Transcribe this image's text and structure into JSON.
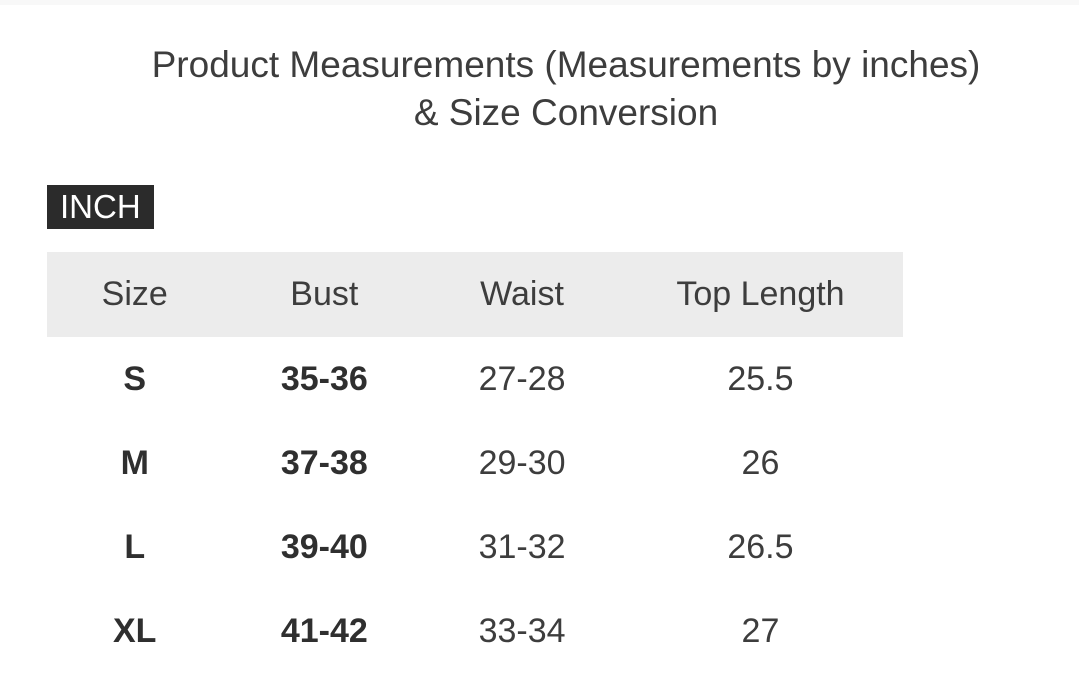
{
  "page": {
    "title": "Product Measurements (Measurements by inches) & Size Conversion"
  },
  "unit_badge": {
    "label": "INCH"
  },
  "table": {
    "headers": [
      "Size",
      "Bust",
      "Waist",
      "Top Length"
    ],
    "rows": [
      {
        "size": "S",
        "bust": "35-36",
        "waist": "27-28",
        "top_length": "25.5"
      },
      {
        "size": "M",
        "bust": "37-38",
        "waist": "29-30",
        "top_length": "26"
      },
      {
        "size": "L",
        "bust": "39-40",
        "waist": "31-32",
        "top_length": "26.5"
      },
      {
        "size": "XL",
        "bust": "41-42",
        "waist": "33-34",
        "top_length": "27"
      }
    ]
  },
  "colors": {
    "top_strip": "#f8f8f8",
    "text": "#3d3d3d",
    "text_bold": "#2f2f2f",
    "badge_bg": "#2b2b2b",
    "badge_text": "#ffffff",
    "header_bg": "#ececec"
  }
}
